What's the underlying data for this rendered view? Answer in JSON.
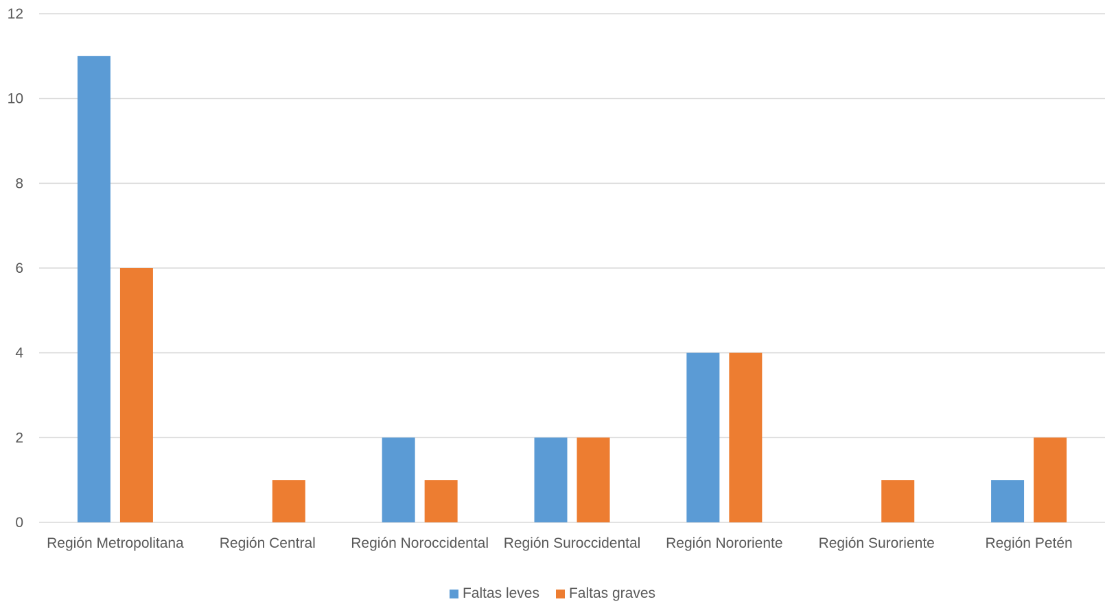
{
  "chart_data": {
    "type": "bar",
    "title": "",
    "xlabel": "",
    "ylabel": "",
    "categories": [
      "Región Metropolitana",
      "Región Central",
      "Región Noroccidental",
      "Región Suroccidental",
      "Región Nororiente",
      "Región Suroriente",
      "Región Petén"
    ],
    "series": [
      {
        "name": "Faltas leves",
        "color": "#5B9BD5",
        "values": [
          11,
          0,
          2,
          2,
          4,
          0,
          1
        ]
      },
      {
        "name": "Faltas graves",
        "color": "#ED7D31",
        "values": [
          6,
          1,
          1,
          2,
          4,
          1,
          2
        ]
      }
    ],
    "ylim": [
      0,
      12
    ],
    "yticks": [
      "0",
      "2",
      "4",
      "6",
      "8",
      "10",
      "12"
    ],
    "grid": true,
    "legend_position": "bottom"
  }
}
